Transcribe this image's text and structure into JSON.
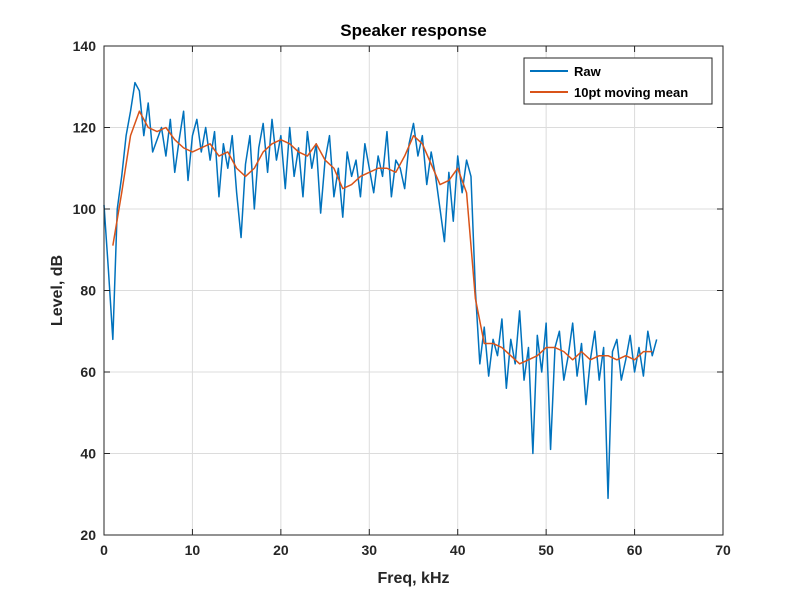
{
  "chart_data": {
    "type": "line",
    "title": "Speaker response",
    "xlabel": "Freq, kHz",
    "ylabel": "Level, dB",
    "xlim": [
      0,
      70
    ],
    "ylim": [
      20,
      140
    ],
    "xticks": [
      0,
      10,
      20,
      30,
      40,
      50,
      60,
      70
    ],
    "yticks": [
      20,
      40,
      60,
      80,
      100,
      120,
      140
    ],
    "grid": true,
    "legend_position": "top-right",
    "series": [
      {
        "name": "Raw",
        "color": "#0072BD",
        "x": [
          0,
          0.5,
          1,
          1.5,
          2,
          2.5,
          3,
          3.5,
          4,
          4.5,
          5,
          5.5,
          6,
          6.5,
          7,
          7.5,
          8,
          8.5,
          9,
          9.5,
          10,
          10.5,
          11,
          11.5,
          12,
          12.5,
          13,
          13.5,
          14,
          14.5,
          15,
          15.5,
          16,
          16.5,
          17,
          17.5,
          18,
          18.5,
          19,
          19.5,
          20,
          20.5,
          21,
          21.5,
          22,
          22.5,
          23,
          23.5,
          24,
          24.5,
          25,
          25.5,
          26,
          26.5,
          27,
          27.5,
          28,
          28.5,
          29,
          29.5,
          30,
          30.5,
          31,
          31.5,
          32,
          32.5,
          33,
          33.5,
          34,
          34.5,
          35,
          35.5,
          36,
          36.5,
          37,
          37.5,
          38,
          38.5,
          39,
          39.5,
          40,
          40.5,
          41,
          41.5,
          42,
          42.5,
          43,
          43.5,
          44,
          44.5,
          45,
          45.5,
          46,
          46.5,
          47,
          47.5,
          48,
          48.5,
          49,
          49.5,
          50,
          50.5,
          51,
          51.5,
          52,
          52.5,
          53,
          53.5,
          54,
          54.5,
          55,
          55.5,
          56,
          56.5,
          57,
          57.5,
          58,
          58.5,
          59,
          59.5,
          60,
          60.5,
          61,
          61.5,
          62,
          62.5
        ],
        "y": [
          101,
          85,
          68,
          100,
          108,
          118,
          124,
          131,
          129,
          118,
          126,
          114,
          117,
          120,
          113,
          122,
          109,
          117,
          124,
          107,
          118,
          122,
          114,
          120,
          112,
          119,
          103,
          116,
          110,
          118,
          104,
          93,
          111,
          118,
          100,
          115,
          121,
          109,
          122,
          112,
          118,
          105,
          120,
          108,
          115,
          103,
          119,
          110,
          116,
          99,
          112,
          118,
          103,
          110,
          98,
          114,
          108,
          112,
          103,
          116,
          110,
          104,
          113,
          108,
          119,
          103,
          112,
          110,
          105,
          116,
          121,
          113,
          118,
          106,
          114,
          108,
          100,
          92,
          109,
          97,
          113,
          104,
          112,
          108,
          80,
          62,
          71,
          59,
          68,
          64,
          73,
          56,
          68,
          62,
          75,
          58,
          66,
          40,
          69,
          60,
          72,
          41,
          66,
          70,
          58,
          64,
          72,
          59,
          67,
          52,
          63,
          70,
          58,
          66,
          29,
          65,
          68,
          58,
          63,
          69,
          60,
          66,
          59,
          70,
          64,
          68
        ],
        "tail_shown_to": 62.5
      },
      {
        "name": "10pt moving mean",
        "color": "#D95319",
        "x": [
          1,
          2,
          3,
          4,
          5,
          6,
          7,
          8,
          9,
          10,
          11,
          12,
          13,
          14,
          15,
          16,
          17,
          18,
          19,
          20,
          21,
          22,
          23,
          24,
          25,
          26,
          27,
          28,
          29,
          30,
          31,
          32,
          33,
          34,
          35,
          36,
          37,
          38,
          39,
          40,
          41,
          42,
          43,
          44,
          45,
          46,
          47,
          48,
          49,
          50,
          51,
          52,
          53,
          54,
          55,
          56,
          57,
          58,
          59,
          60,
          61,
          62
        ],
        "y": [
          91,
          104,
          118,
          124,
          120,
          119,
          120,
          117,
          115,
          114,
          115,
          116,
          113,
          114,
          110,
          108,
          110,
          114,
          116,
          117,
          116,
          114,
          113,
          116,
          112,
          110,
          105,
          106,
          108,
          109,
          110,
          110,
          109,
          113,
          118,
          116,
          111,
          106,
          107,
          110,
          104,
          78,
          67,
          67,
          66,
          64,
          62,
          63,
          64,
          66,
          66,
          65,
          63,
          65,
          63,
          64,
          64,
          63,
          64,
          63,
          65,
          65
        ]
      }
    ]
  }
}
